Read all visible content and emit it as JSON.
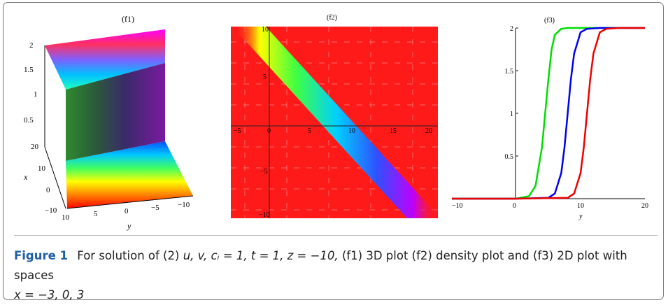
{
  "figure": {
    "label": "Figure 1",
    "caption_prefix": "For solution of (2)",
    "caption_math": "u, v, cᵢ = 1, t = 1, z = −10,",
    "caption_rest": "(f1) 3D plot (f2) density plot and (f3) 2D plot with spaces",
    "caption_tail": "x = −3, 0, 3"
  },
  "panels": {
    "f1": {
      "label": "(f1)",
      "type": "3d-surface",
      "z_ticks": [
        "2",
        "1.5",
        "1",
        "0.5"
      ],
      "x_axis_label": "x",
      "x_ticks": [
        "20",
        "10",
        "0",
        "−10"
      ],
      "y_axis_label": "y",
      "y_ticks": [
        "10",
        "5",
        "0",
        "−5",
        "−10"
      ]
    },
    "f2": {
      "label": "(f2)",
      "type": "density",
      "x_ticks": [
        "−5",
        "0",
        "5",
        "10",
        "15",
        "20"
      ],
      "y_ticks": [
        "10",
        "5",
        "−5",
        "−10"
      ],
      "xlim": [
        -5,
        20
      ],
      "ylim": [
        -10,
        10
      ]
    }
  },
  "chart_data": {
    "type": "line",
    "title": "(f3)",
    "xlabel": "y",
    "ylabel": "",
    "xlim": [
      -10,
      20
    ],
    "ylim": [
      0,
      2
    ],
    "x_ticks": [
      "−10",
      "0",
      "10",
      "20"
    ],
    "y_ticks": [
      "2",
      "1.5",
      "1",
      "0.5"
    ],
    "series": [
      {
        "color": "#00dd00",
        "x": [
          -10,
          0,
          2,
          3,
          4,
          4.5,
          5,
          5.5,
          6,
          7,
          8,
          10,
          20
        ],
        "y": [
          0,
          0,
          0.03,
          0.15,
          0.6,
          1.0,
          1.4,
          1.75,
          1.92,
          1.99,
          2,
          2,
          2
        ]
      },
      {
        "color": "#0000ee",
        "x": [
          -10,
          0,
          5,
          6,
          7,
          7.5,
          8,
          8.5,
          9,
          10,
          11,
          13,
          20
        ],
        "y": [
          0,
          0,
          0.01,
          0.06,
          0.3,
          0.6,
          1.0,
          1.4,
          1.7,
          1.95,
          1.99,
          2,
          2
        ]
      },
      {
        "color": "#ee0000",
        "x": [
          -10,
          0,
          8,
          9,
          10,
          10.5,
          11,
          11.5,
          12,
          13,
          14,
          16,
          20
        ],
        "y": [
          0,
          0,
          0.01,
          0.06,
          0.3,
          0.6,
          1.0,
          1.4,
          1.7,
          1.95,
          1.99,
          2,
          2
        ]
      }
    ]
  }
}
